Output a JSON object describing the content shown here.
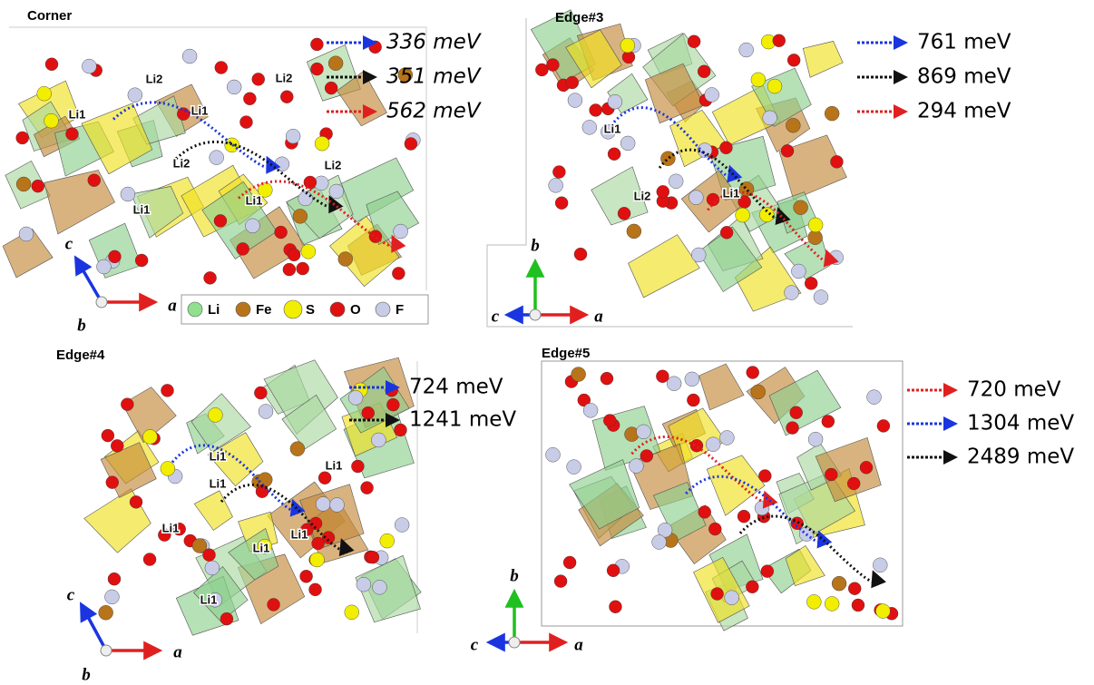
{
  "panels": [
    {
      "title": "Corner",
      "italic": true,
      "paths": [
        {
          "color": "#1a35e0",
          "label": "336 meV"
        },
        {
          "color": "#111111",
          "label": "351 meV"
        },
        {
          "color": "#e02020",
          "label": "562 meV"
        }
      ],
      "sites": [
        "Li2",
        "Li2",
        "Li1",
        "Li1",
        "Li2",
        "Li2",
        "Li1",
        "Li1"
      ],
      "axes": [
        "c",
        "a",
        "b"
      ]
    },
    {
      "title": "Edge#3",
      "italic": false,
      "paths": [
        {
          "color": "#1a35e0",
          "label": "761 meV"
        },
        {
          "color": "#111111",
          "label": "869 meV"
        },
        {
          "color": "#e02020",
          "label": "294 meV"
        }
      ],
      "sites": [
        "Li1",
        "Li2",
        "Li1"
      ],
      "axes": [
        "b",
        "a",
        "c"
      ]
    },
    {
      "title": "Edge#4",
      "italic": false,
      "paths": [
        {
          "color": "#1a35e0",
          "label": "724 meV"
        },
        {
          "color": "#111111",
          "label": "1241 meV"
        }
      ],
      "sites": [
        "Li1",
        "Li1",
        "Li1",
        "Li1",
        "Li1",
        "Li1",
        "Li1"
      ],
      "axes": [
        "c",
        "a",
        "b"
      ]
    },
    {
      "title": "Edge#5",
      "italic": false,
      "paths": [
        {
          "color": "#e02020",
          "label": "720 meV"
        },
        {
          "color": "#1a35e0",
          "label": "1304 meV"
        },
        {
          "color": "#111111",
          "label": "2489 meV"
        }
      ],
      "sites": [],
      "axes": [
        "b",
        "a",
        "c"
      ]
    }
  ],
  "atom_legend": [
    {
      "label": "Li",
      "color": "#90e090"
    },
    {
      "label": "Fe",
      "color": "#b8741a"
    },
    {
      "label": "S",
      "color": "#f2ee00"
    },
    {
      "label": "O",
      "color": "#e01010"
    },
    {
      "label": "F",
      "color": "#c8cce6"
    }
  ]
}
